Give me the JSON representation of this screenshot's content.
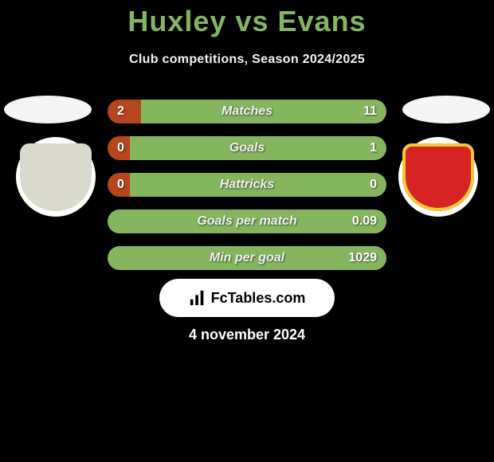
{
  "title": "Huxley vs Evans",
  "title_color": "#86b560",
  "subtitle": "Club competitions, Season 2024/2025",
  "subtitle_color": "#f5f5f5",
  "date": "4 november 2024",
  "side_oval_color": "#f5f5f5",
  "crest_left": {
    "bg": "#ffffff",
    "inner": "#d9d9ce"
  },
  "crest_right": {
    "bg": "#ffffff",
    "inner": "#d62222",
    "detail": "#f2c938"
  },
  "logo": {
    "bg": "#ffffff",
    "text": "FcTables.com",
    "text_color": "#000000"
  },
  "bar_style": {
    "label_color": "#f2f2f2",
    "value_color": "#ffffff",
    "height": 30,
    "radius": 15,
    "fontsize": 16
  },
  "bars": [
    {
      "label": "Matches",
      "left": "2",
      "right": "11",
      "bg_left": "#b5461e",
      "bg_right": "#86b560",
      "split_pct": 12
    },
    {
      "label": "Goals",
      "left": "0",
      "right": "1",
      "bg_left": "#b5461e",
      "bg_right": "#86b560",
      "split_pct": 8
    },
    {
      "label": "Hattricks",
      "left": "0",
      "right": "0",
      "bg_left": "#b5461e",
      "bg_right": "#86b560",
      "split_pct": 8
    },
    {
      "label": "Goals per match",
      "left": "",
      "right": "0.09",
      "bg_left": "#86b560",
      "bg_right": "#86b560",
      "split_pct": 0
    },
    {
      "label": "Min per goal",
      "left": "",
      "right": "1029",
      "bg_left": "#86b560",
      "bg_right": "#86b560",
      "split_pct": 0
    }
  ]
}
